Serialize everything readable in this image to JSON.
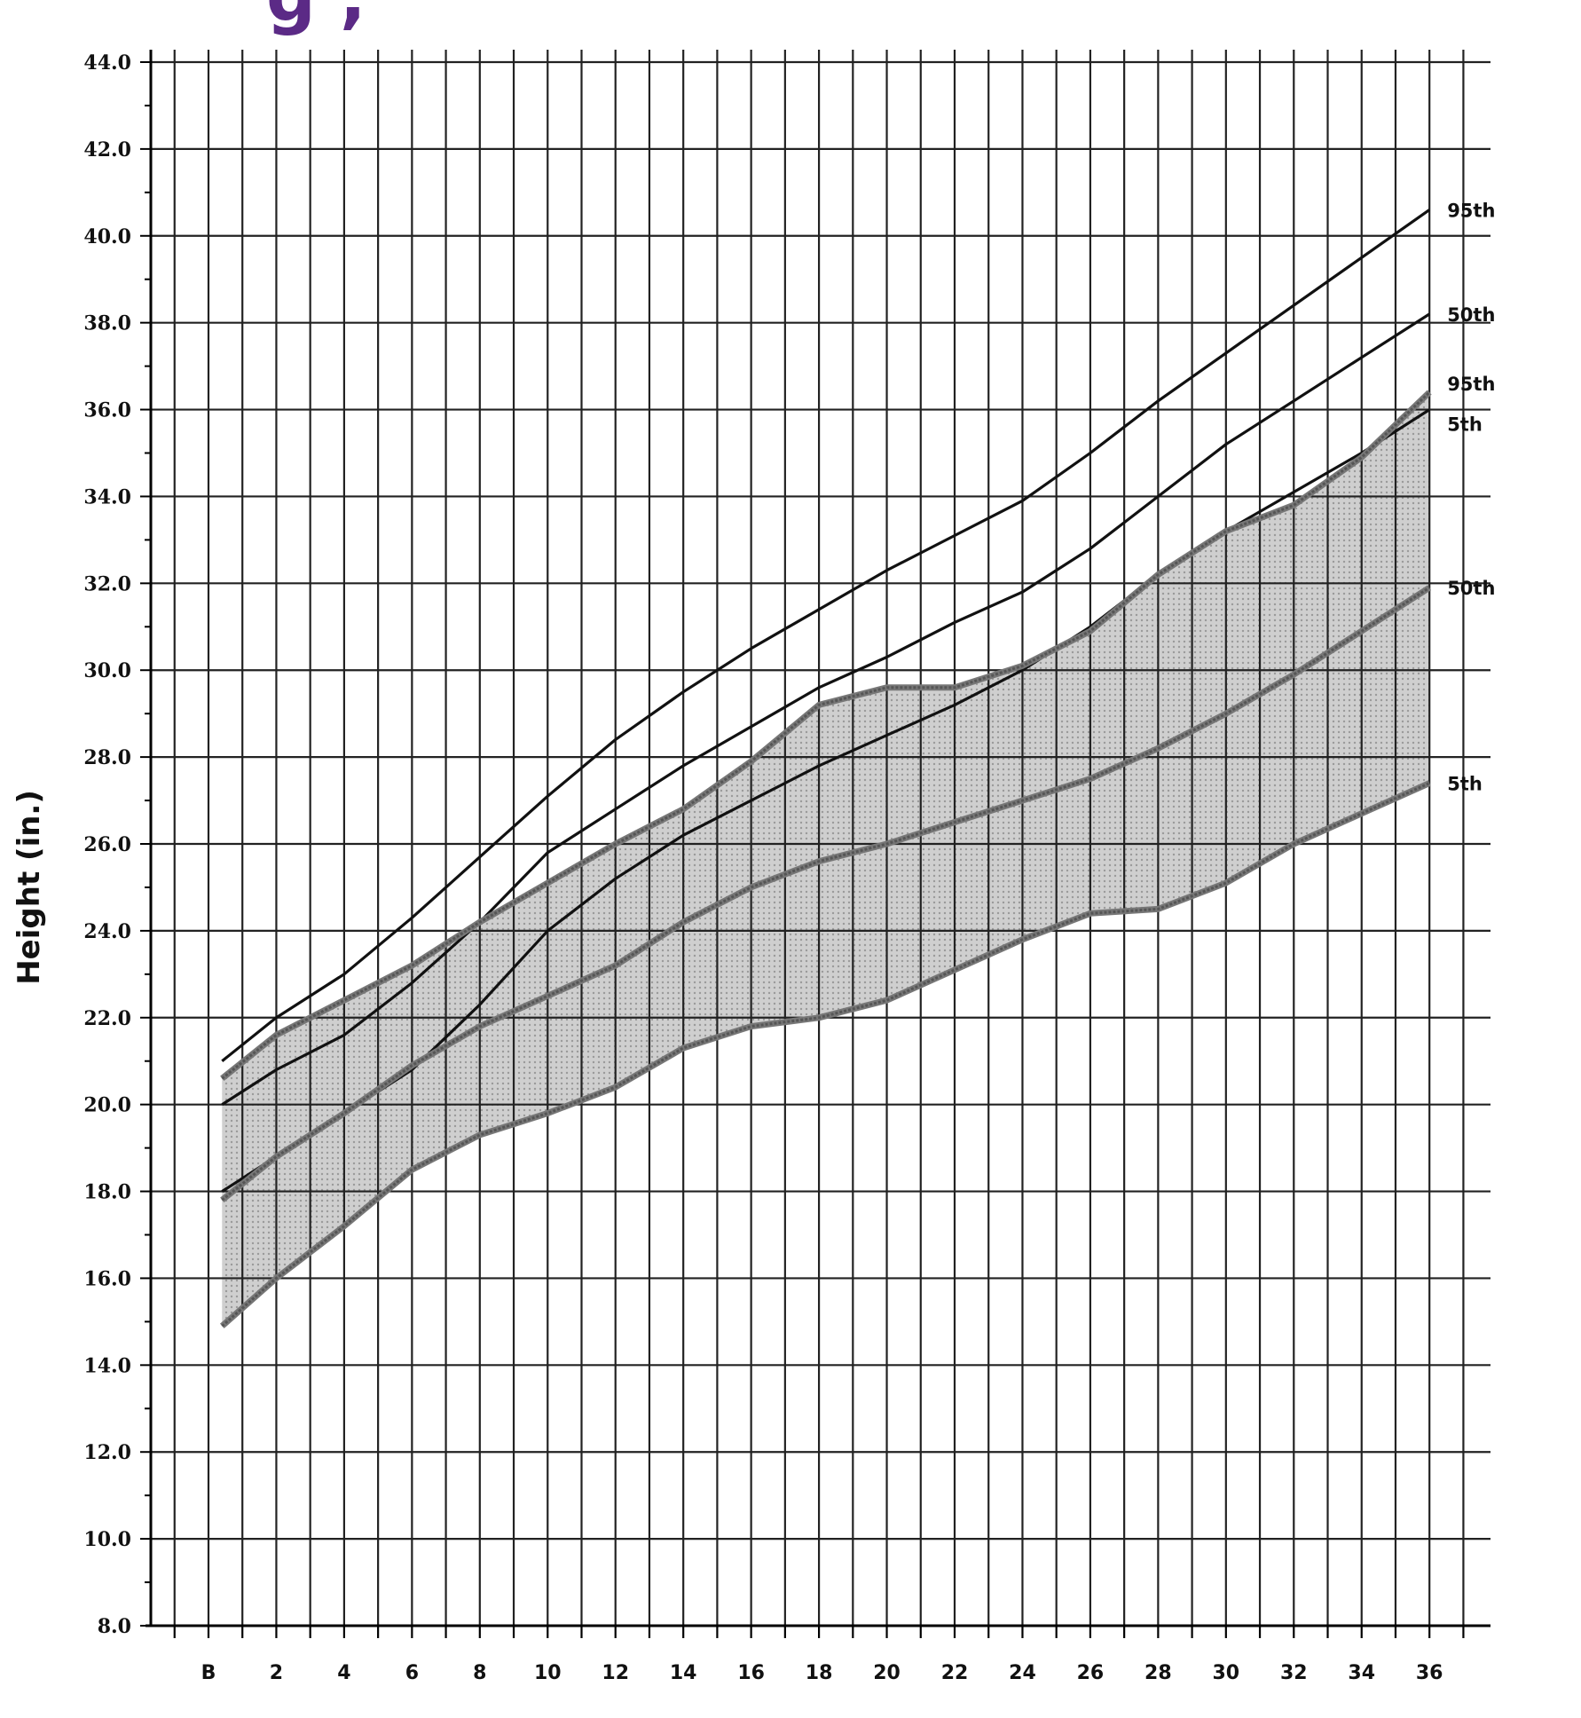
{
  "header": {
    "title_fragment": "g            ,"
  },
  "colors": {
    "title": "#5b2a86",
    "grid": "#222222",
    "line": "#111111",
    "band_fill": "#cfcfcf",
    "band_edge": "#777777"
  },
  "chart_data": {
    "type": "line",
    "title": "",
    "xlabel": "",
    "ylabel": "Height (in.)",
    "x_tick_values": [
      0,
      2,
      4,
      6,
      8,
      10,
      12,
      14,
      16,
      18,
      20,
      22,
      24,
      26,
      28,
      30,
      32,
      34,
      36
    ],
    "x_tick_labels": [
      "B",
      "2",
      "4",
      "6",
      "8",
      "10",
      "12",
      "14",
      "16",
      "18",
      "20",
      "22",
      "24",
      "26",
      "28",
      "30",
      "32",
      "34",
      "36"
    ],
    "xlim": [
      -1.7,
      37.8
    ],
    "ylim": [
      8,
      44
    ],
    "y_tick_values": [
      8,
      10,
      12,
      14,
      16,
      18,
      20,
      22,
      24,
      26,
      28,
      30,
      32,
      34,
      36,
      38,
      40,
      42,
      44
    ],
    "y_tick_labels": [
      "8.0",
      "10.0",
      "12.0",
      "14.0",
      "16.0",
      "18.0",
      "20.0",
      "22.0",
      "24.0",
      "26.0",
      "28.0",
      "30.0",
      "32.0",
      "34.0",
      "36.0",
      "38.0",
      "40.0",
      "42.0",
      "44.0"
    ],
    "grid": true,
    "x": [
      0.4,
      2,
      4,
      6,
      8,
      10,
      12,
      14,
      16,
      18,
      20,
      22,
      24,
      26,
      28,
      30,
      32,
      34,
      36
    ],
    "series": [
      {
        "name": "95th",
        "style": "solid",
        "values": [
          21.0,
          22.0,
          23.0,
          24.3,
          25.7,
          27.1,
          28.4,
          29.5,
          30.5,
          31.4,
          32.3,
          33.1,
          33.9,
          35.0,
          36.2,
          37.3,
          38.4,
          39.5,
          40.6
        ]
      },
      {
        "name": "50th",
        "style": "solid",
        "values": [
          20.0,
          20.8,
          21.6,
          22.8,
          24.2,
          25.8,
          26.8,
          27.8,
          28.7,
          29.6,
          30.3,
          31.1,
          31.8,
          32.8,
          34.0,
          35.2,
          36.2,
          37.2,
          38.2
        ]
      },
      {
        "name": "5th",
        "style": "solid",
        "values": [
          18.0,
          18.8,
          19.8,
          20.8,
          22.3,
          24.0,
          25.2,
          26.2,
          27.0,
          27.8,
          28.5,
          29.2,
          30.0,
          31.0,
          32.2,
          33.2,
          34.1,
          35.0,
          36.0
        ]
      },
      {
        "name": "95th",
        "style": "shaded-band-edge",
        "values": [
          20.6,
          21.6,
          22.4,
          23.2,
          24.2,
          25.1,
          26.0,
          26.8,
          27.9,
          29.2,
          29.6,
          29.6,
          30.1,
          30.9,
          32.2,
          33.2,
          33.8,
          34.9,
          36.4
        ]
      },
      {
        "name": "50th",
        "style": "shaded-band-middle",
        "values": [
          17.8,
          18.8,
          19.8,
          20.9,
          21.8,
          22.5,
          23.2,
          24.2,
          25.0,
          25.6,
          26.0,
          26.5,
          27.0,
          27.5,
          28.2,
          29.0,
          29.9,
          30.9,
          31.9
        ]
      },
      {
        "name": "5th",
        "style": "shaded-band-edge",
        "values": [
          14.9,
          16.0,
          17.2,
          18.5,
          19.3,
          19.8,
          20.4,
          21.3,
          21.8,
          22.0,
          22.4,
          23.1,
          23.8,
          24.4,
          24.5,
          25.1,
          26.0,
          26.7,
          27.4
        ]
      }
    ]
  }
}
